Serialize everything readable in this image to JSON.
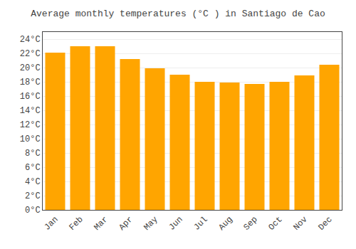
{
  "chart_data": {
    "type": "bar",
    "title": "Average monthly temperatures (°C ) in Santiago de Cao",
    "categories": [
      "Jan",
      "Feb",
      "Mar",
      "Apr",
      "May",
      "Jun",
      "Jul",
      "Aug",
      "Sep",
      "Oct",
      "Nov",
      "Dec"
    ],
    "values": [
      22.1,
      23.0,
      23.0,
      21.2,
      19.9,
      19.0,
      18.0,
      17.9,
      17.7,
      18.0,
      18.9,
      20.4
    ],
    "color": "#FFA500",
    "ylim": [
      0,
      25
    ],
    "yticks": [
      {
        "value": 0,
        "label": "0°C"
      },
      {
        "value": 2,
        "label": "2°C"
      },
      {
        "value": 4,
        "label": "4°C"
      },
      {
        "value": 6,
        "label": "6°C"
      },
      {
        "value": 8,
        "label": "8°C"
      },
      {
        "value": 10,
        "label": "10°C"
      },
      {
        "value": 12,
        "label": "12°C"
      },
      {
        "value": 14,
        "label": "14°C"
      },
      {
        "value": 16,
        "label": "16°C"
      },
      {
        "value": 18,
        "label": "18°C"
      },
      {
        "value": 20,
        "label": "20°C"
      },
      {
        "value": 22,
        "label": "22°C"
      },
      {
        "value": 24,
        "label": "24°C"
      }
    ],
    "grid": true
  }
}
